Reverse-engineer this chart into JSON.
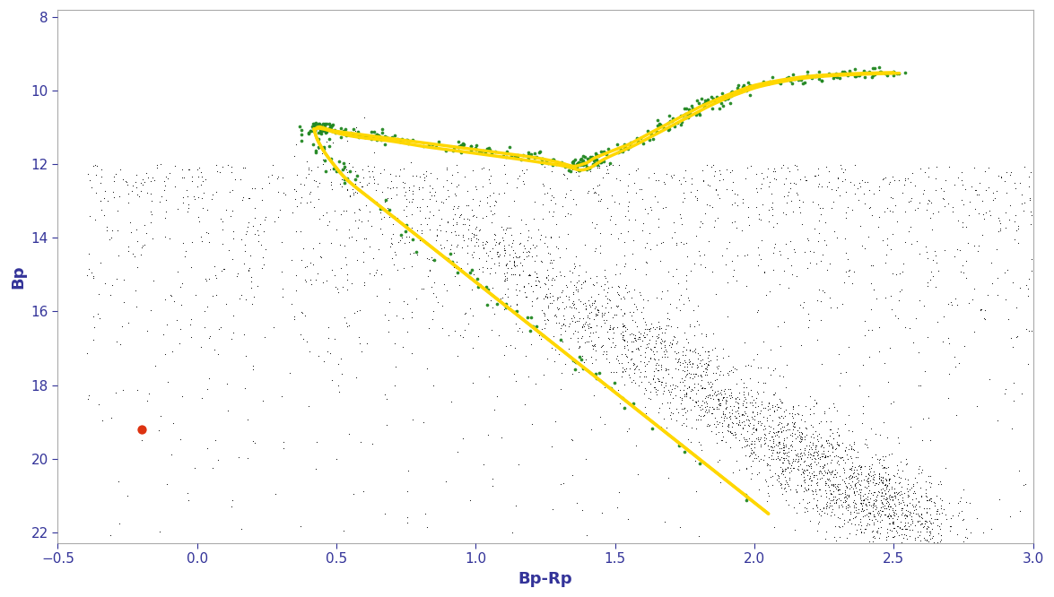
{
  "title": "",
  "xlabel": "Bp-Rp",
  "ylabel": "Bp",
  "xlim": [
    -0.5,
    3.0
  ],
  "ylim": [
    22.3,
    7.8
  ],
  "xticks": [
    -0.5,
    0,
    0.5,
    1,
    1.5,
    2,
    2.5,
    3
  ],
  "yticks": [
    8,
    10,
    12,
    14,
    16,
    18,
    20,
    22
  ],
  "bg_color": "#ffffff",
  "black_dot_color": "#000000",
  "green_dot_color": "#228822",
  "red_dot_color": "#dd3311",
  "isochrone_color": "#FFD700",
  "isochrone_linewidth": 2.5,
  "random_seed": 12345,
  "red_x": -0.2,
  "red_y": 19.2,
  "axis_color": "#aaaaaa",
  "tick_color": "#333399",
  "label_color": "#333399"
}
